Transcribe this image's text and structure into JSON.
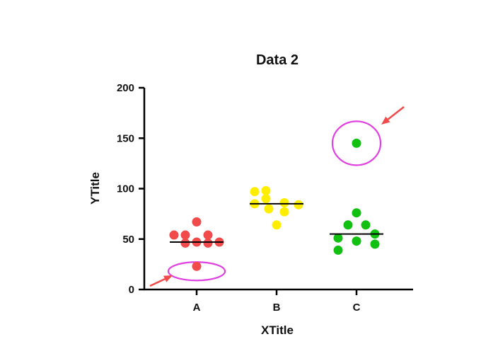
{
  "chart_data": {
    "type": "scatter",
    "title": "Data 2",
    "xlabel": "XTitle",
    "ylabel": "YTitle",
    "ylim": [
      0,
      200
    ],
    "yticks": [
      0,
      50,
      100,
      150,
      200
    ],
    "categories": [
      "A",
      "B",
      "C"
    ],
    "series": [
      {
        "category": "A",
        "color": "#f04a4a",
        "mean": 47,
        "values": [
          67,
          54,
          54,
          54,
          46,
          47,
          46,
          47,
          23
        ]
      },
      {
        "category": "B",
        "color": "#ffee00",
        "mean": 85,
        "values": [
          97,
          98,
          90,
          86,
          85,
          80,
          84,
          77,
          64
        ]
      },
      {
        "category": "C",
        "color": "#11c011",
        "mean": 55,
        "values": [
          76,
          64,
          64,
          51,
          55,
          48,
          39,
          45,
          145
        ]
      }
    ],
    "annotations": [
      {
        "type": "ellipse-highlight",
        "category": "A",
        "value": 23,
        "color": "#e040e0"
      },
      {
        "type": "ellipse-highlight",
        "category": "C",
        "value": 145,
        "color": "#e040e0"
      },
      {
        "type": "arrow",
        "color": "#f04a4a"
      },
      {
        "type": "arrow",
        "color": "#f04a4a"
      }
    ]
  }
}
